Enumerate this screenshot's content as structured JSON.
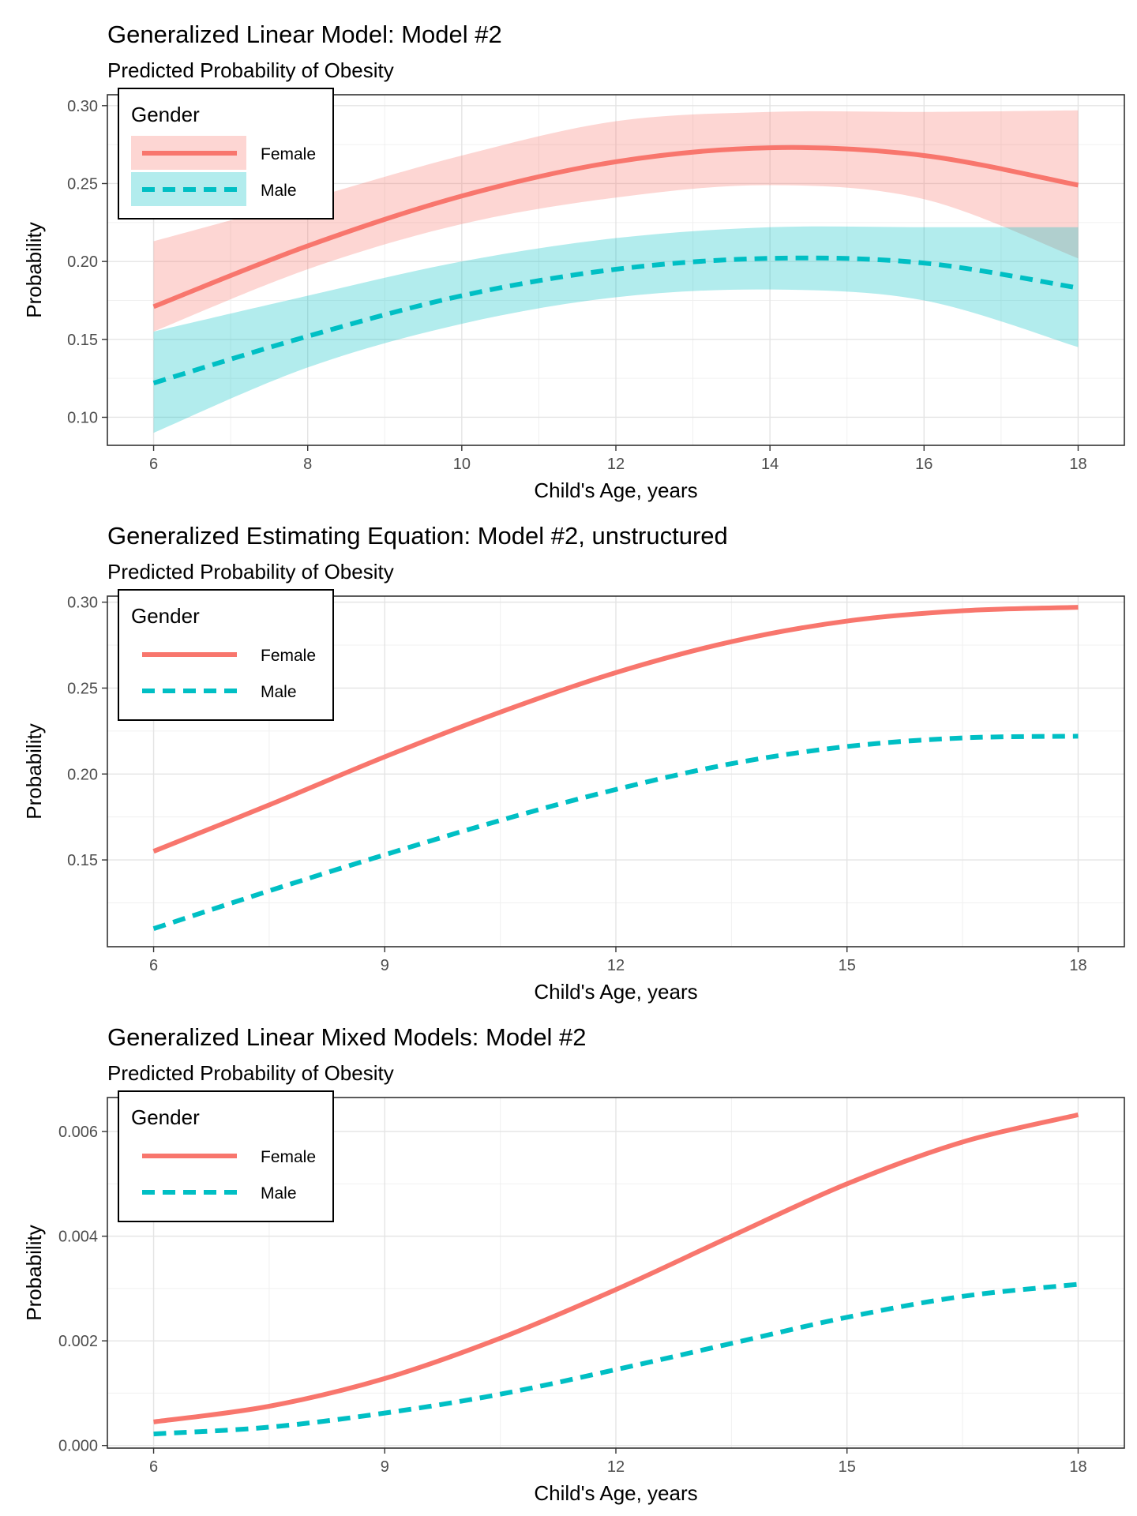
{
  "colors": {
    "female": "#F8766D",
    "male": "#00BFC4"
  },
  "chart_data": [
    {
      "type": "line",
      "title": "Generalized Linear Model: Model #2",
      "subtitle": "Predicted Probability of Obesity",
      "xlabel": "Child's Age, years",
      "ylabel": "Probability",
      "xlim": [
        5.4,
        18.6
      ],
      "ylim": [
        0.082,
        0.307
      ],
      "xticks": [
        6,
        8,
        10,
        12,
        14,
        16,
        18
      ],
      "yticks": [
        0.1,
        0.15,
        0.2,
        0.25,
        0.3
      ],
      "ytick_labels": [
        "0.10",
        "0.15",
        "0.20",
        "0.25",
        "0.30"
      ],
      "grid": true,
      "legend": {
        "title": "Gender",
        "position": "top-left",
        "entries": [
          "Female",
          "Male"
        ],
        "show_band": true
      },
      "x": [
        6,
        8,
        10,
        12,
        14,
        16,
        18
      ],
      "series": [
        {
          "name": "Female",
          "style": "solid",
          "values": [
            0.171,
            0.21,
            0.242,
            0.264,
            0.273,
            0.268,
            0.249
          ],
          "lower": [
            0.155,
            0.195,
            0.224,
            0.241,
            0.249,
            0.24,
            0.202
          ],
          "upper": [
            0.213,
            0.24,
            0.268,
            0.29,
            0.296,
            0.296,
            0.297
          ]
        },
        {
          "name": "Male",
          "style": "dashed",
          "values": [
            0.122,
            0.152,
            0.178,
            0.195,
            0.202,
            0.199,
            0.183
          ],
          "lower": [
            0.09,
            0.132,
            0.16,
            0.177,
            0.182,
            0.175,
            0.145
          ],
          "upper": [
            0.155,
            0.178,
            0.2,
            0.215,
            0.222,
            0.222,
            0.222
          ]
        }
      ]
    },
    {
      "type": "line",
      "title": "Generalized Estimating Equation: Model #2, unstructured",
      "subtitle": "Predicted Probability of Obesity",
      "xlabel": "Child's Age, years",
      "ylabel": "Probability",
      "xlim": [
        5.4,
        18.6
      ],
      "ylim": [
        0.0995,
        0.3035
      ],
      "xticks": [
        6,
        9,
        12,
        15,
        18
      ],
      "yticks": [
        0.15,
        0.2,
        0.25,
        0.3
      ],
      "ytick_labels": [
        "0.15",
        "0.20",
        "0.25",
        "0.30"
      ],
      "grid": true,
      "legend": {
        "title": "Gender",
        "position": "top-left",
        "entries": [
          "Female",
          "Male"
        ],
        "show_band": false
      },
      "x": [
        6,
        7.5,
        9,
        10.5,
        12,
        13.5,
        15,
        16.5,
        18
      ],
      "series": [
        {
          "name": "Female",
          "style": "solid",
          "values": [
            0.155,
            0.182,
            0.21,
            0.236,
            0.259,
            0.277,
            0.289,
            0.295,
            0.297
          ]
        },
        {
          "name": "Male",
          "style": "dashed",
          "values": [
            0.11,
            0.132,
            0.153,
            0.173,
            0.191,
            0.206,
            0.216,
            0.221,
            0.222
          ]
        }
      ]
    },
    {
      "type": "line",
      "title": "Generalized Linear Mixed Models: Model #2",
      "subtitle": "Predicted Probability of Obesity",
      "xlabel": "Child's Age, years",
      "ylabel": "Probability",
      "xlim": [
        5.4,
        18.6
      ],
      "ylim": [
        -5e-05,
        0.00665
      ],
      "xticks": [
        6,
        9,
        12,
        15,
        18
      ],
      "yticks": [
        0.0,
        0.002,
        0.004,
        0.006
      ],
      "ytick_labels": [
        "0.000",
        "0.002",
        "0.004",
        "0.006"
      ],
      "grid": true,
      "legend": {
        "title": "Gender",
        "position": "top-left",
        "entries": [
          "Female",
          "Male"
        ],
        "show_band": false
      },
      "x": [
        6,
        7.5,
        9,
        10.5,
        12,
        13.5,
        15,
        16.5,
        18
      ],
      "series": [
        {
          "name": "Female",
          "style": "solid",
          "values": [
            0.00045,
            0.00075,
            0.00128,
            0.00205,
            0.00298,
            0.004,
            0.005,
            0.0058,
            0.00632
          ]
        },
        {
          "name": "Male",
          "style": "dashed",
          "values": [
            0.00022,
            0.00035,
            0.00062,
            0.00098,
            0.00145,
            0.00195,
            0.00245,
            0.00285,
            0.00308
          ]
        }
      ]
    }
  ]
}
